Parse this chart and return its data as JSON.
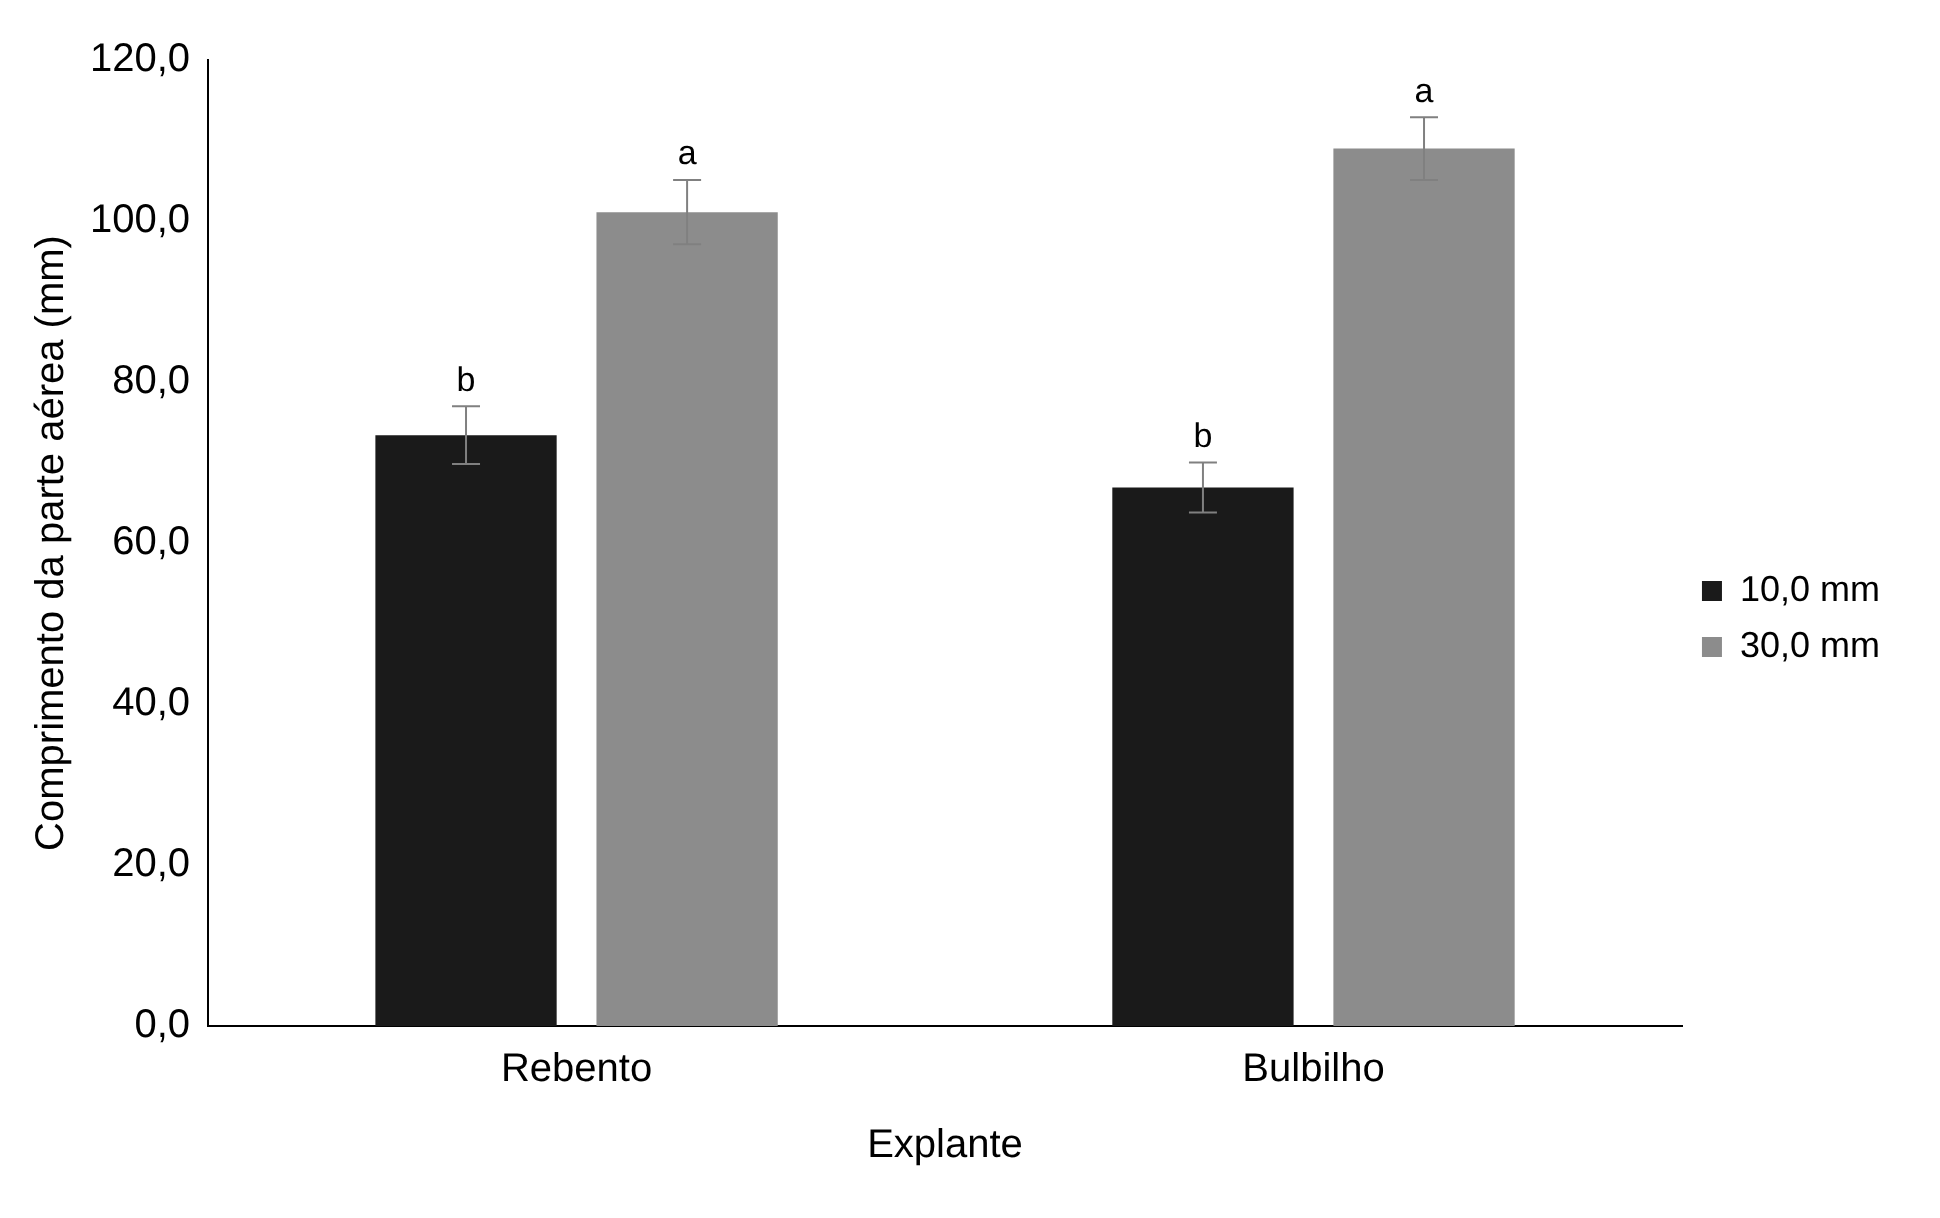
{
  "chart_data": {
    "type": "bar",
    "xlabel": "Explante",
    "ylabel": "Comprimento da parte aérea (mm)",
    "categories": [
      "Rebento",
      "Bulbilho"
    ],
    "series": [
      {
        "name": "10,0 mm",
        "color": "#1a1a1a",
        "values": [
          73.4,
          66.9
        ],
        "errors": [
          3.6,
          3.1
        ]
      },
      {
        "name": "30,0 mm",
        "color": "#8c8c8c",
        "values": [
          101.1,
          109.0
        ],
        "errors": [
          4.0,
          3.9
        ]
      }
    ],
    "ylim": [
      0,
      120
    ],
    "yticks": [
      {
        "value": 0,
        "label": "0,0"
      },
      {
        "value": 20,
        "label": "20,0"
      },
      {
        "value": 40,
        "label": "40,0"
      },
      {
        "value": 60,
        "label": "60,0"
      },
      {
        "value": 80,
        "label": "80,0"
      },
      {
        "value": 100,
        "label": "100,0"
      },
      {
        "value": 120,
        "label": "120,0"
      }
    ],
    "annotations": [
      "b",
      "a",
      "b",
      "a"
    ],
    "grid": false,
    "legend": "right"
  }
}
